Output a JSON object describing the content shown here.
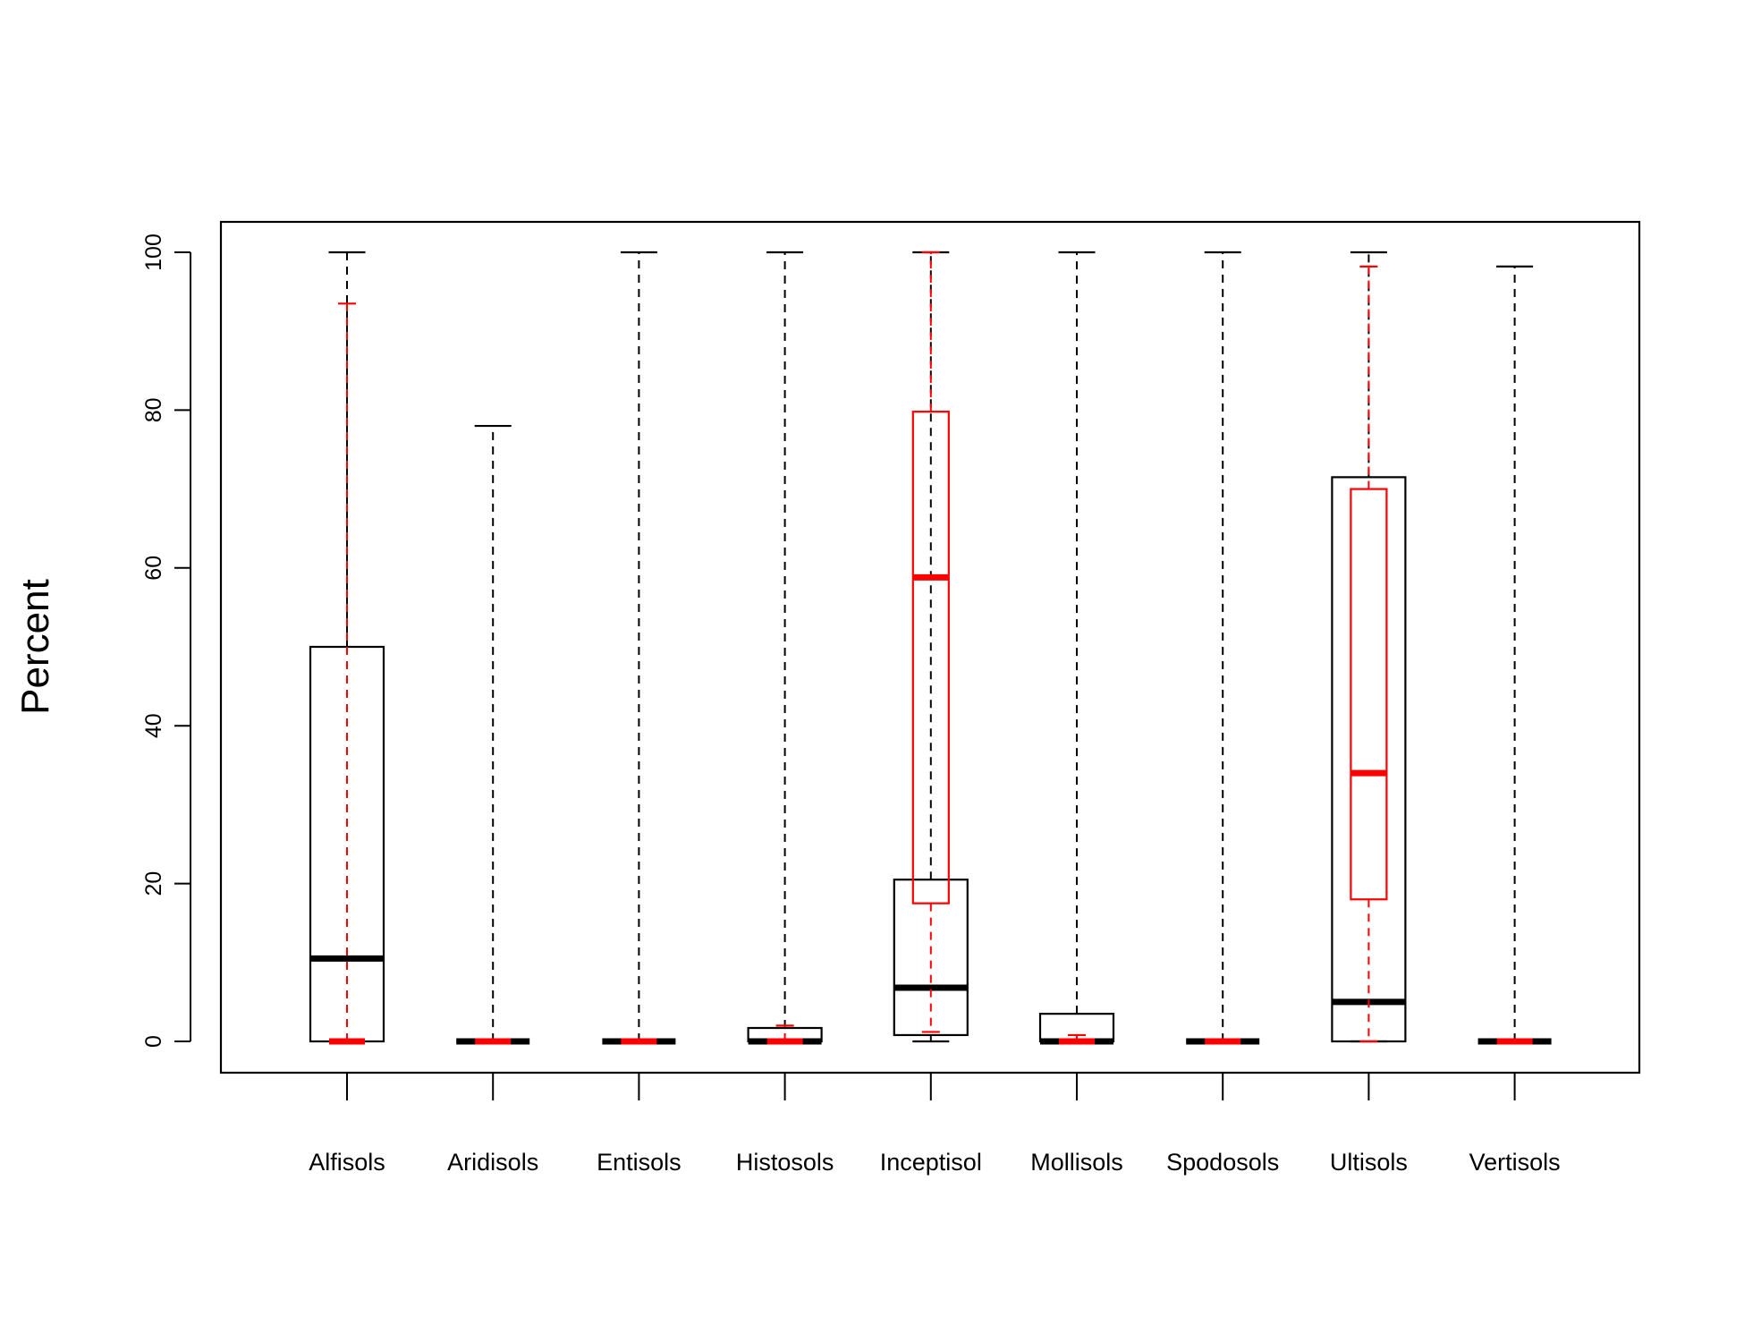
{
  "chart_data": {
    "type": "boxplot",
    "ylabel": "Percent",
    "xlabel": "",
    "ylim": [
      -4,
      104
    ],
    "y_ticks": [
      0,
      20,
      40,
      60,
      80,
      100
    ],
    "categories": [
      "Alfisols",
      "Aridisols",
      "Entisols",
      "Histosols",
      "Inceptisol",
      "Mollisols",
      "Spodosols",
      "Ultisols",
      "Vertisols"
    ],
    "colors": {
      "series_1": "#000000",
      "series_2": "#ff0000"
    },
    "series": [
      {
        "color": "#000000",
        "boxes": [
          {
            "min": 0,
            "q1": 0,
            "median": 10.5,
            "q3": 50,
            "max": 100
          },
          {
            "min": 0,
            "q1": 0,
            "median": 0,
            "q3": 0,
            "max": 78
          },
          {
            "min": 0,
            "q1": 0,
            "median": 0,
            "q3": 0,
            "max": 100
          },
          {
            "min": 0,
            "q1": 0,
            "median": 0,
            "q3": 1.7,
            "max": 100
          },
          {
            "min": 0,
            "q1": 0.8,
            "median": 6.8,
            "q3": 20.5,
            "max": 100
          },
          {
            "min": 0,
            "q1": 0,
            "median": 0,
            "q3": 3.5,
            "max": 100
          },
          {
            "min": 0,
            "q1": 0,
            "median": 0,
            "q3": 0,
            "max": 100
          },
          {
            "min": 0,
            "q1": 0,
            "median": 5,
            "q3": 71.5,
            "max": 100
          },
          {
            "min": 0,
            "q1": 0,
            "median": 0,
            "q3": 0,
            "max": 98.2
          }
        ]
      },
      {
        "color": "#ff0000",
        "boxes": [
          {
            "min": 0,
            "q1": 0,
            "median": 0,
            "q3": 0,
            "max": 93.5
          },
          {
            "min": 0,
            "q1": 0,
            "median": 0,
            "q3": 0,
            "max": 0
          },
          {
            "min": 0,
            "q1": 0,
            "median": 0,
            "q3": 0,
            "max": 0
          },
          {
            "min": 0,
            "q1": 0,
            "median": 0,
            "q3": 0,
            "max": 2
          },
          {
            "min": 1.2,
            "q1": 17.5,
            "median": 58.8,
            "q3": 79.8,
            "max": 100
          },
          {
            "min": 0,
            "q1": 0,
            "median": 0,
            "q3": 0,
            "max": 0.8
          },
          {
            "min": 0,
            "q1": 0,
            "median": 0,
            "q3": 0,
            "max": 0
          },
          {
            "min": 0,
            "q1": 18,
            "median": 34,
            "q3": 70,
            "max": 98.2
          },
          {
            "min": 0,
            "q1": 0,
            "median": 0,
            "q3": 0,
            "max": 0
          }
        ]
      }
    ]
  }
}
